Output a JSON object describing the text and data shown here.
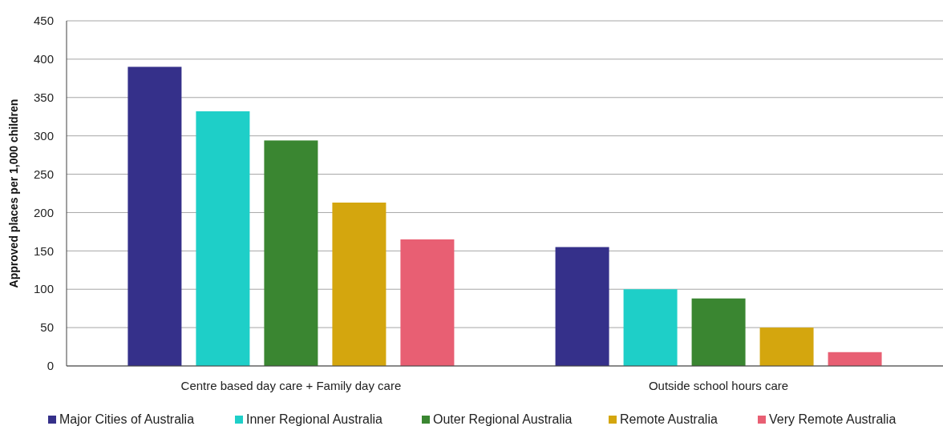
{
  "chart_data": {
    "type": "bar",
    "ylabel": "Approved places per 1,000 children",
    "categories": [
      "Centre based day care + Family day care",
      "Outside school hours care"
    ],
    "series": [
      {
        "name": "Major Cities of Australia",
        "color": "#35308a",
        "values": [
          390,
          155
        ]
      },
      {
        "name": "Inner Regional Australia",
        "color": "#1ecfc8",
        "values": [
          332,
          100
        ]
      },
      {
        "name": "Outer Regional Australia",
        "color": "#3a8631",
        "values": [
          294,
          88
        ]
      },
      {
        "name": "Remote Australia",
        "color": "#d4a60e",
        "values": [
          213,
          50
        ]
      },
      {
        "name": "Very Remote Australia",
        "color": "#e85f73",
        "values": [
          165,
          18
        ]
      }
    ],
    "ylim": [
      0,
      450
    ],
    "yticks": [
      0,
      50,
      100,
      150,
      200,
      250,
      300,
      350,
      400,
      450
    ],
    "grid": "y",
    "legend": "bottom"
  }
}
